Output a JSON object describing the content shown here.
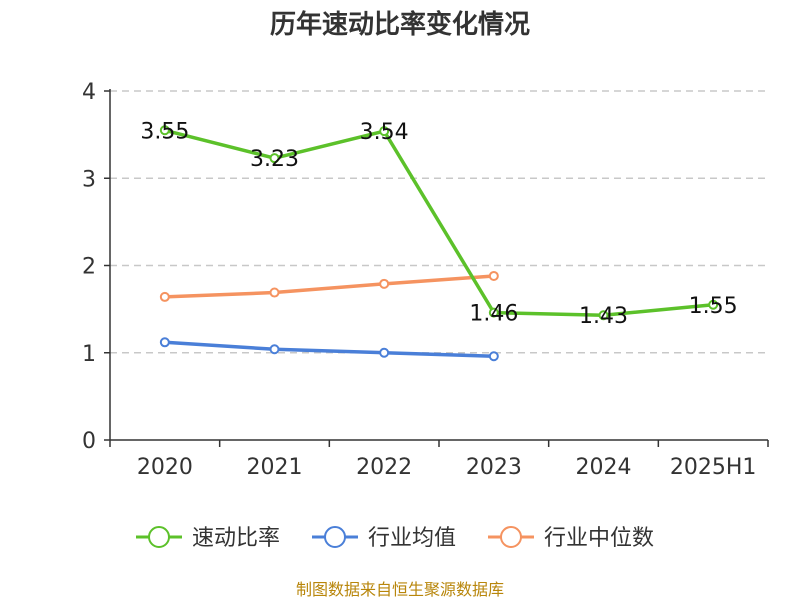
{
  "chart_data": {
    "type": "line",
    "title": "历年速动比率变化情况",
    "categories": [
      "2020",
      "2021",
      "2022",
      "2023",
      "2024",
      "2025H1"
    ],
    "ylim": [
      0,
      4
    ],
    "yticks": [
      "0",
      "1",
      "2",
      "3",
      "4"
    ],
    "grid": true,
    "legend_position": "bottom",
    "series": [
      {
        "name": "速动比率",
        "color": "#5cc12a",
        "values": [
          3.55,
          3.23,
          3.54,
          1.46,
          1.43,
          1.55
        ],
        "labels": [
          "3.55",
          "3.23",
          "3.54",
          "1.46",
          "1.43",
          "1.55"
        ]
      },
      {
        "name": "行业均值",
        "color": "#4a7fd8",
        "values": [
          1.12,
          1.04,
          1.0,
          0.96,
          null,
          null
        ]
      },
      {
        "name": "行业中位数",
        "color": "#f59360",
        "values": [
          1.64,
          1.69,
          1.79,
          1.88,
          null,
          null
        ]
      }
    ],
    "source": "制图数据来自恒生聚源数据库"
  }
}
